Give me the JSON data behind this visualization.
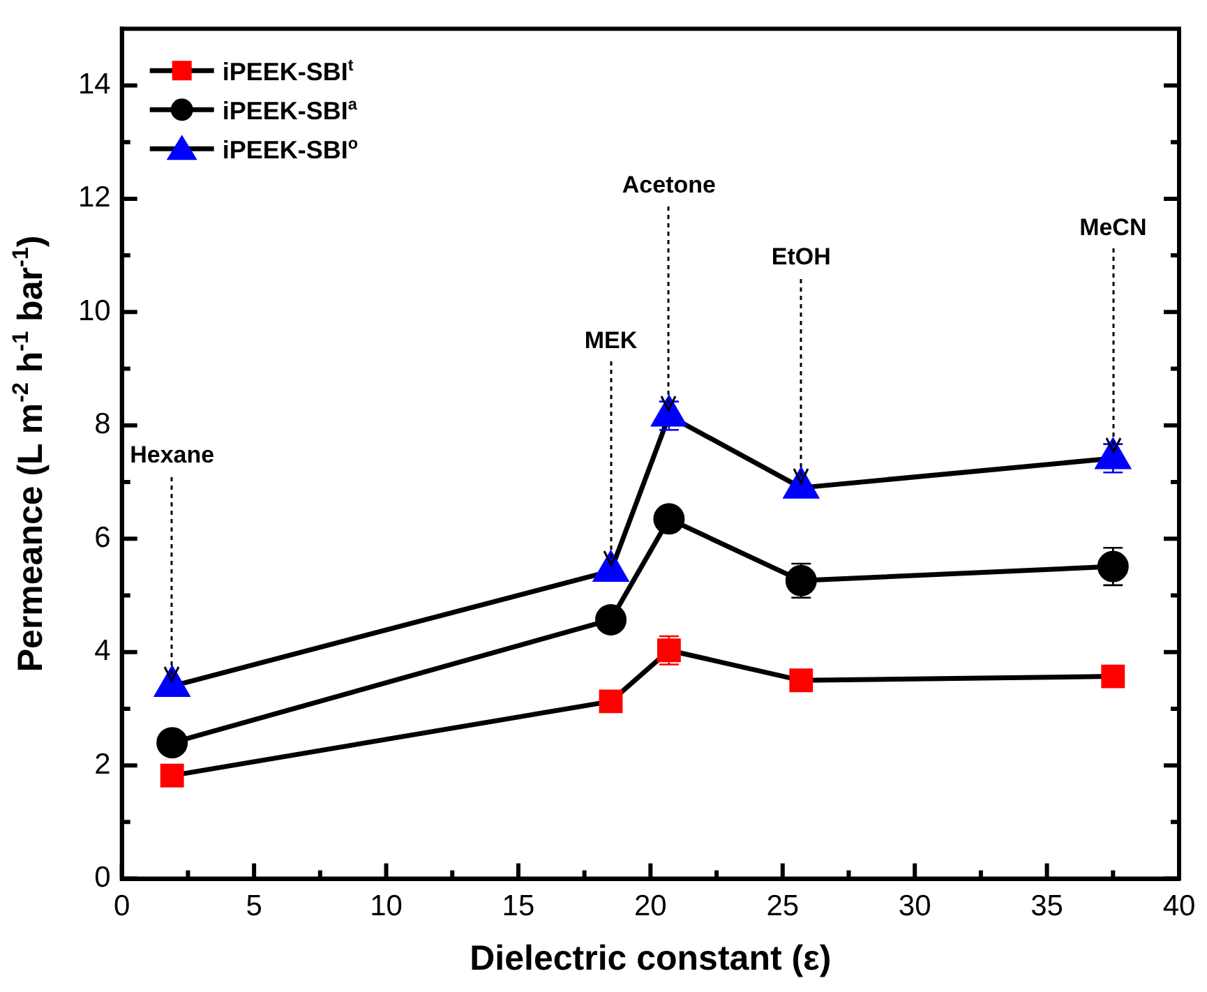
{
  "chart_data": {
    "type": "line",
    "xlabel": "Dielectric constant (ε)",
    "ylabel": "Permeance (L m$^{-2}$ h$^{-1}$ bar$^{-1}$)",
    "x": [
      1.9,
      18.5,
      20.7,
      25.7,
      37.5
    ],
    "series": [
      {
        "name": "iPEEK-SBI$^{t}$",
        "color": "#ff0000",
        "marker": "square",
        "values": [
          1.82,
          3.13,
          4.03,
          3.5,
          3.57
        ],
        "errors": [
          null,
          null,
          0.25,
          null,
          null
        ]
      },
      {
        "name": "iPEEK-SBI$^{a}$",
        "color": "#000000",
        "marker": "circle",
        "values": [
          2.4,
          4.57,
          6.35,
          5.26,
          5.51
        ],
        "errors": [
          null,
          null,
          null,
          0.3,
          0.33
        ]
      },
      {
        "name": "iPEEK-SBI$^{o}$",
        "color": "#0000ff",
        "marker": "triangle",
        "values": [
          3.4,
          5.43,
          8.17,
          6.9,
          7.42
        ],
        "errors": [
          null,
          null,
          0.25,
          null,
          0.25
        ]
      }
    ],
    "annotations": [
      {
        "text": "Hexane",
        "x": 1.9,
        "y": 3.4
      },
      {
        "text": "MEK",
        "x": 18.5,
        "y": 5.43
      },
      {
        "text": "Acetone",
        "x": 20.7,
        "y": 8.17
      },
      {
        "text": "EtOH",
        "x": 25.7,
        "y": 6.9
      },
      {
        "text": "MeCN",
        "x": 37.5,
        "y": 7.42
      }
    ],
    "xlim": [
      0,
      40
    ],
    "xticks": [
      0,
      {
        "value": 2.5,
        "label": null
      },
      5,
      {
        "value": 7.5,
        "label": null
      },
      10,
      {
        "value": 12.5,
        "label": null
      },
      15,
      {
        "value": 17.5,
        "label": null
      },
      20,
      {
        "value": 22.5,
        "label": null
      },
      25,
      {
        "value": 27.5,
        "label": null
      },
      30,
      {
        "value": 32.5,
        "label": null
      },
      35,
      {
        "value": 37.5,
        "label": null
      },
      40
    ],
    "ylim": [
      0,
      15
    ],
    "yticks": [
      0,
      {
        "value": 1,
        "label": null
      },
      2,
      {
        "value": 3,
        "label": null
      },
      4,
      {
        "value": 5,
        "label": null
      },
      6,
      {
        "value": 7,
        "label": null
      },
      8,
      {
        "value": 9,
        "label": null
      },
      10,
      {
        "value": 11,
        "label": null
      },
      12,
      {
        "value": 13,
        "label": null
      },
      14
    ],
    "grid": false,
    "legend": "top left",
    "line_style": "solid"
  }
}
